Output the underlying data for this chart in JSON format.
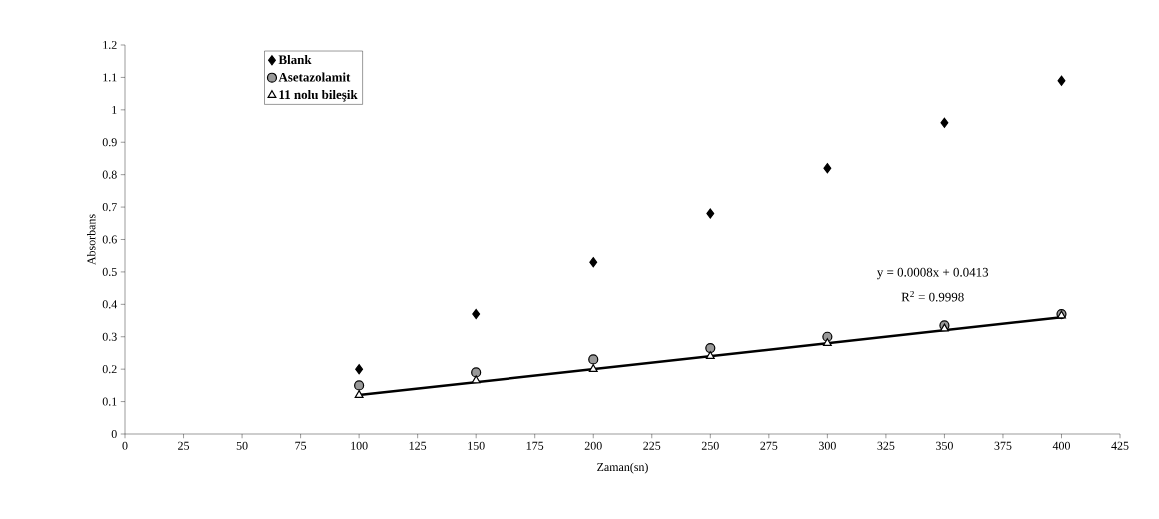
{
  "chart_data": {
    "type": "scatter",
    "xlabel": "Zaman(sn)",
    "ylabel": "Absorbans",
    "x": [
      100,
      150,
      200,
      250,
      300,
      350,
      400
    ],
    "series": [
      {
        "name": "Blank",
        "color": "#000000",
        "marker": "diamond",
        "values": [
          0.2,
          0.37,
          0.53,
          0.68,
          0.82,
          0.96,
          1.09
        ]
      },
      {
        "name": "Asetazolamit",
        "color": "#999999",
        "marker": "circle",
        "values": [
          0.15,
          0.19,
          0.23,
          0.265,
          0.3,
          0.335,
          0.37
        ]
      },
      {
        "name": "11 nolu bileşik",
        "color": "#ffffff",
        "marker": "triangle",
        "values": [
          0.12,
          0.165,
          0.2,
          0.24,
          0.28,
          0.325,
          0.365
        ]
      },
      {
        "type": "line",
        "color": "#000000",
        "x": [
          100,
          400
        ],
        "values": [
          0.12,
          0.36
        ]
      }
    ],
    "annotations": [
      "y = 0.0008x + 0.0413",
      "R$^{2}$ = 0.9998"
    ],
    "xlim": [
      0,
      425
    ],
    "ylim": [
      0,
      1.2
    ],
    "xticks": [
      0,
      25,
      50,
      75,
      100,
      125,
      150,
      175,
      200,
      225,
      250,
      275,
      300,
      325,
      350,
      375,
      400,
      425
    ],
    "yticks": [
      0,
      0.1,
      0.2,
      0.3,
      0.4,
      0.5,
      0.6,
      0.7,
      0.8,
      0.9,
      1,
      1.1,
      1.2
    ],
    "legend": "top left",
    "grid": false
  }
}
